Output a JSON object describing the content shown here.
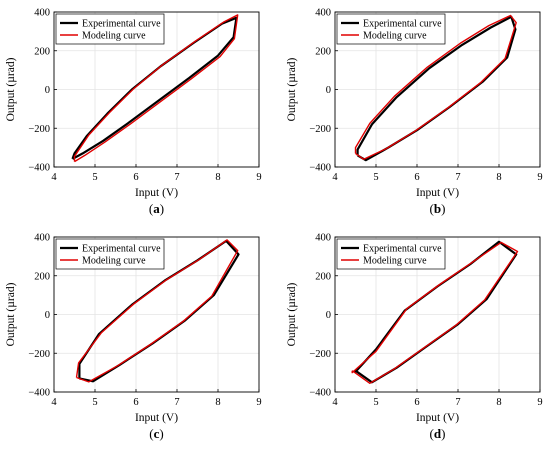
{
  "chart_data": [
    {
      "type": "line",
      "caption": {
        "open": "(",
        "letter": "a",
        "close": ")"
      },
      "xlabel": "Input (V)",
      "ylabel": "Output (µrad)",
      "xlim": [
        4,
        9
      ],
      "ylim": [
        -400,
        400
      ],
      "xticks": [
        4,
        5,
        6,
        7,
        8,
        9
      ],
      "yticks": [
        -400,
        -200,
        0,
        200,
        400
      ],
      "xtick_labels": [
        "4",
        "5",
        "6",
        "7",
        "8",
        "9"
      ],
      "ytick_labels": [
        "−400",
        "−200",
        "0",
        "200",
        "400"
      ],
      "grid": true,
      "legend_position": "top-left",
      "series": [
        {
          "name": "Experimental curve",
          "color": "#000000",
          "x": [
            4.45,
            4.7,
            5.2,
            5.8,
            6.5,
            7.3,
            8.0,
            8.38,
            8.45,
            8.1,
            7.4,
            6.6,
            5.9,
            5.3,
            4.8,
            4.5,
            4.45
          ],
          "y": [
            -358,
            -330,
            -265,
            -175,
            -65,
            60,
            175,
            270,
            370,
            340,
            240,
            120,
            0,
            -125,
            -240,
            -330,
            -358
          ]
        },
        {
          "name": "Modeling curve",
          "color": "#e00000",
          "x": [
            4.5,
            4.75,
            5.25,
            5.85,
            6.55,
            7.35,
            8.05,
            8.4,
            8.48,
            8.15,
            7.45,
            6.65,
            5.95,
            5.35,
            4.85,
            4.5,
            4.5
          ],
          "y": [
            -372,
            -340,
            -270,
            -180,
            -70,
            55,
            170,
            262,
            385,
            350,
            250,
            128,
            5,
            -120,
            -235,
            -345,
            -372
          ]
        }
      ]
    },
    {
      "type": "line",
      "caption": {
        "open": "(",
        "letter": "b",
        "close": ")"
      },
      "xlabel": "Input (V)",
      "ylabel": "Output (µrad)",
      "xlim": [
        4,
        9
      ],
      "ylim": [
        -400,
        400
      ],
      "xticks": [
        4,
        5,
        6,
        7,
        8,
        9
      ],
      "yticks": [
        -400,
        -200,
        0,
        200,
        400
      ],
      "xtick_labels": [
        "4",
        "5",
        "6",
        "7",
        "8",
        "9"
      ],
      "ytick_labels": [
        "−400",
        "−200",
        "0",
        "200",
        "400"
      ],
      "grid": true,
      "legend_position": "top-left",
      "series": [
        {
          "name": "Experimental curve",
          "color": "#000000",
          "x": [
            4.55,
            4.75,
            5.3,
            6.0,
            6.8,
            7.6,
            8.2,
            8.4,
            8.3,
            7.8,
            7.1,
            6.3,
            5.5,
            4.9,
            4.55,
            4.55
          ],
          "y": [
            -340,
            -365,
            -300,
            -210,
            -90,
            40,
            165,
            310,
            375,
            320,
            230,
            110,
            -40,
            -180,
            -310,
            -340
          ]
        },
        {
          "name": "Modeling curve",
          "color": "#e00000",
          "x": [
            4.5,
            4.7,
            5.25,
            5.95,
            6.75,
            7.55,
            8.15,
            8.42,
            8.28,
            7.75,
            7.05,
            6.25,
            5.45,
            4.85,
            4.5,
            4.5
          ],
          "y": [
            -330,
            -360,
            -305,
            -215,
            -95,
            35,
            160,
            345,
            382,
            330,
            238,
            115,
            -35,
            -175,
            -300,
            -330
          ]
        }
      ]
    },
    {
      "type": "line",
      "caption": {
        "open": "(",
        "letter": "c",
        "close": ")"
      },
      "xlabel": "Input (V)",
      "ylabel": "Output (µrad)",
      "xlim": [
        4,
        9
      ],
      "ylim": [
        -400,
        400
      ],
      "xticks": [
        4,
        5,
        6,
        7,
        8,
        9
      ],
      "yticks": [
        -400,
        -200,
        0,
        200,
        400
      ],
      "xtick_labels": [
        "4",
        "5",
        "6",
        "7",
        "8",
        "9"
      ],
      "ytick_labels": [
        "−400",
        "−200",
        "0",
        "200",
        "400"
      ],
      "grid": true,
      "legend_position": "top-left",
      "series": [
        {
          "name": "Experimental curve",
          "color": "#000000",
          "x": [
            4.62,
            4.95,
            5.6,
            6.4,
            7.2,
            7.9,
            8.5,
            8.2,
            7.5,
            6.7,
            5.9,
            5.1,
            4.62,
            4.62
          ],
          "y": [
            -330,
            -345,
            -260,
            -150,
            -30,
            100,
            310,
            380,
            280,
            175,
            50,
            -100,
            -255,
            -330
          ]
        },
        {
          "name": "Modeling curve",
          "color": "#e00000",
          "x": [
            4.55,
            4.85,
            5.55,
            6.35,
            7.15,
            7.85,
            8.48,
            8.22,
            7.55,
            6.75,
            5.95,
            5.15,
            4.6,
            4.55
          ],
          "y": [
            -325,
            -348,
            -265,
            -155,
            -35,
            95,
            330,
            385,
            285,
            180,
            55,
            -95,
            -250,
            -325
          ]
        }
      ]
    },
    {
      "type": "line",
      "caption": {
        "open": "(",
        "letter": "d",
        "close": ")"
      },
      "xlabel": "Input (V)",
      "ylabel": "Output (µrad)",
      "xlim": [
        4,
        9
      ],
      "ylim": [
        -400,
        400
      ],
      "xticks": [
        4,
        5,
        6,
        7,
        8,
        9
      ],
      "yticks": [
        -400,
        -200,
        0,
        200,
        400
      ],
      "xtick_labels": [
        "4",
        "5",
        "6",
        "7",
        "8",
        "9"
      ],
      "ytick_labels": [
        "−400",
        "−200",
        "0",
        "200",
        "400"
      ],
      "grid": true,
      "legend_position": "top-left",
      "series": [
        {
          "name": "Experimental curve",
          "color": "#000000",
          "x": [
            4.5,
            4.9,
            5.5,
            6.2,
            7.0,
            7.7,
            8.42,
            8.0,
            7.3,
            6.5,
            5.7,
            5.0,
            4.5,
            4.5
          ],
          "y": [
            -290,
            -350,
            -275,
            -170,
            -50,
            80,
            310,
            375,
            260,
            145,
            20,
            -180,
            -295,
            -290
          ]
        },
        {
          "name": "Modeling curve",
          "color": "#e00000",
          "x": [
            4.42,
            4.85,
            5.45,
            6.15,
            6.95,
            7.65,
            8.45,
            8.05,
            7.35,
            6.55,
            5.75,
            5.0,
            4.42,
            4.42
          ],
          "y": [
            -290,
            -355,
            -280,
            -175,
            -55,
            75,
            325,
            372,
            270,
            155,
            30,
            -190,
            -300,
            -290
          ]
        }
      ]
    }
  ]
}
